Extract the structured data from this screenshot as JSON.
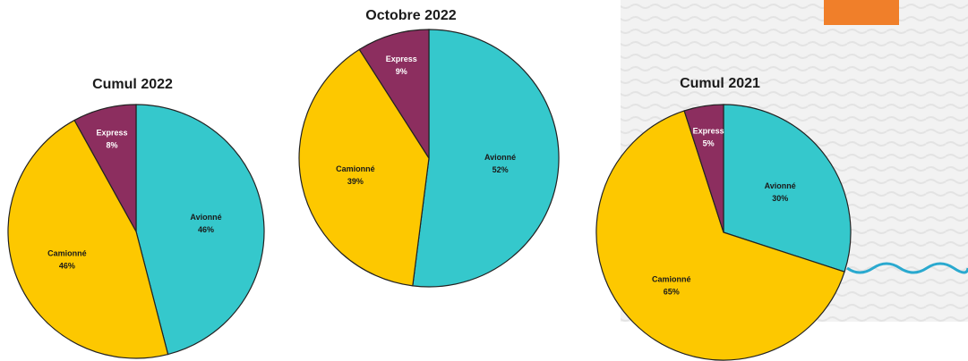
{
  "colors": {
    "avionne": "#35C8CC",
    "camionne": "#FDC800",
    "express": "#8C2E5F",
    "accent_orange": "#F07F2A",
    "wave_blue": "#2AA9CF",
    "panel_bg": "#F0F0F0"
  },
  "chart_data": [
    {
      "type": "pie",
      "title": "Cumul 2022",
      "slices": [
        {
          "name": "Avionné",
          "label": "Avionné",
          "pct_label": "46%",
          "value": 46
        },
        {
          "name": "Camionné",
          "label": "Camionné",
          "pct_label": "46%",
          "value": 46
        },
        {
          "name": "Express",
          "label": "Express",
          "pct_label": "8%",
          "value": 8
        }
      ]
    },
    {
      "type": "pie",
      "title": "Octobre 2022",
      "slices": [
        {
          "name": "Avionné",
          "label": "Avionné",
          "pct_label": "52%",
          "value": 52
        },
        {
          "name": "Camionné",
          "label": "Camionné",
          "pct_label": "39%",
          "value": 39
        },
        {
          "name": "Express",
          "label": "Express",
          "pct_label": "9%",
          "value": 9
        }
      ]
    },
    {
      "type": "pie",
      "title": "Cumul 2021",
      "slices": [
        {
          "name": "Avionné",
          "label": "Avionné",
          "pct_label": "30%",
          "value": 30
        },
        {
          "name": "Camionné",
          "label": "Camionné",
          "pct_label": "65%",
          "value": 65
        },
        {
          "name": "Express",
          "label": "Express",
          "pct_label": "5%",
          "value": 5
        }
      ]
    }
  ]
}
